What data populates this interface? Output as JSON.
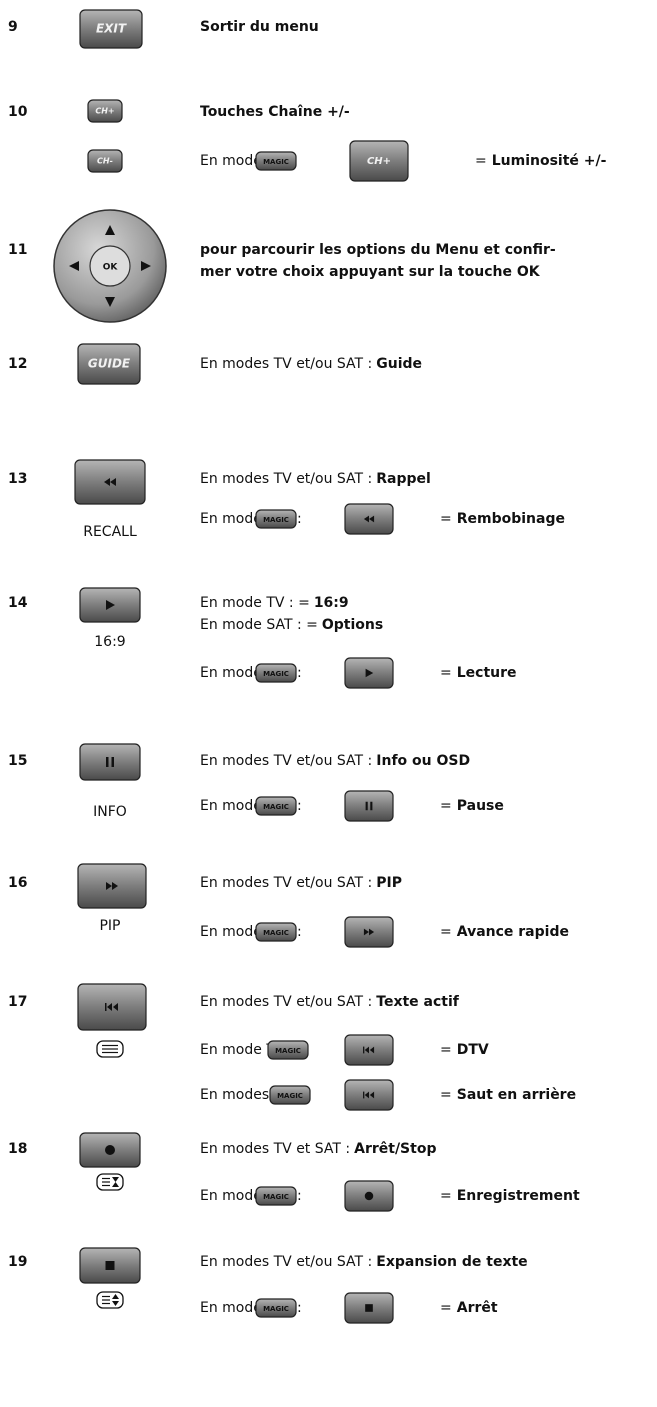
{
  "items": [
    {
      "number": "9",
      "button": "EXIT",
      "lines": [
        {
          "bold": "Sortir du menu"
        }
      ]
    },
    {
      "number": "10",
      "buttons": [
        "CH+",
        "CH-"
      ],
      "lines": [
        {
          "bold": "Touches Chaîne +/-"
        }
      ],
      "combos": [
        {
          "prefix": "En mode TV :",
          "magic": "MAGIC",
          "button": "CH+",
          "equals": "=",
          "result": "Luminosité +/-"
        }
      ]
    },
    {
      "number": "11",
      "button": "OK",
      "lines": [
        {
          "bold": "pour parcourir les options du Menu et confir-"
        },
        {
          "bold": "mer votre choix appuyant sur la touche OK"
        }
      ]
    },
    {
      "number": "12",
      "button": "GUIDE",
      "lines": [
        {
          "text": "En modes TV et/ou SAT :",
          "bold": "Guide"
        }
      ]
    },
    {
      "number": "13",
      "caption": "RECALL",
      "lines": [
        {
          "text": "En modes TV et/ou SAT :",
          "bold": "Rappel"
        }
      ],
      "combos": [
        {
          "prefix": "En mode SAT :",
          "magic": "MAGIC",
          "equals": "=",
          "result": "Rembobinage"
        }
      ]
    },
    {
      "number": "14",
      "caption": "16:9",
      "lines": [
        {
          "text": "En mode TV : =",
          "bold": "16:9"
        },
        {
          "text": "En mode SAT : =",
          "bold": "Options"
        }
      ],
      "combos": [
        {
          "prefix": "En mode SAT :",
          "magic": "MAGIC",
          "equals": "=",
          "result": "Lecture"
        }
      ]
    },
    {
      "number": "15",
      "caption": "INFO",
      "lines": [
        {
          "text": "En modes TV et/ou SAT :",
          "bold": "Info ou OSD"
        }
      ],
      "combos": [
        {
          "prefix": "En mode SAT :",
          "magic": "MAGIC",
          "equals": "=",
          "result": "Pause"
        }
      ]
    },
    {
      "number": "16",
      "caption": "PIP",
      "lines": [
        {
          "text": "En modes TV et/ou SAT :",
          "bold": "PIP"
        }
      ],
      "combos": [
        {
          "prefix": "En mode SAT :",
          "magic": "MAGIC",
          "equals": "=",
          "result": "Avance rapide"
        }
      ]
    },
    {
      "number": "17",
      "lines": [
        {
          "text": "En modes TV et/ou SAT :",
          "bold": "Texte actif"
        }
      ],
      "combos": [
        {
          "prefix": "En mode TV :",
          "magic": "MAGIC",
          "equals": "=",
          "result": "DTV"
        },
        {
          "prefix": "En modes SAT :",
          "magic": "MAGIC",
          "equals": "=",
          "result": "Saut en arrière"
        }
      ]
    },
    {
      "number": "18",
      "lines": [
        {
          "text": "En modes TV et SAT :",
          "bold": "Arrêt/Stop"
        }
      ],
      "combos": [
        {
          "prefix": "En mode SAT :",
          "magic": "MAGIC",
          "equals": "=",
          "result": "Enregistrement"
        }
      ]
    },
    {
      "number": "19",
      "lines": [
        {
          "text": "En modes TV et/ou SAT :",
          "bold": "Expansion de texte"
        }
      ],
      "combos": [
        {
          "prefix": "En mode SAT :",
          "magic": "MAGIC",
          "equals": "=",
          "result": "Arrêt"
        }
      ]
    }
  ]
}
